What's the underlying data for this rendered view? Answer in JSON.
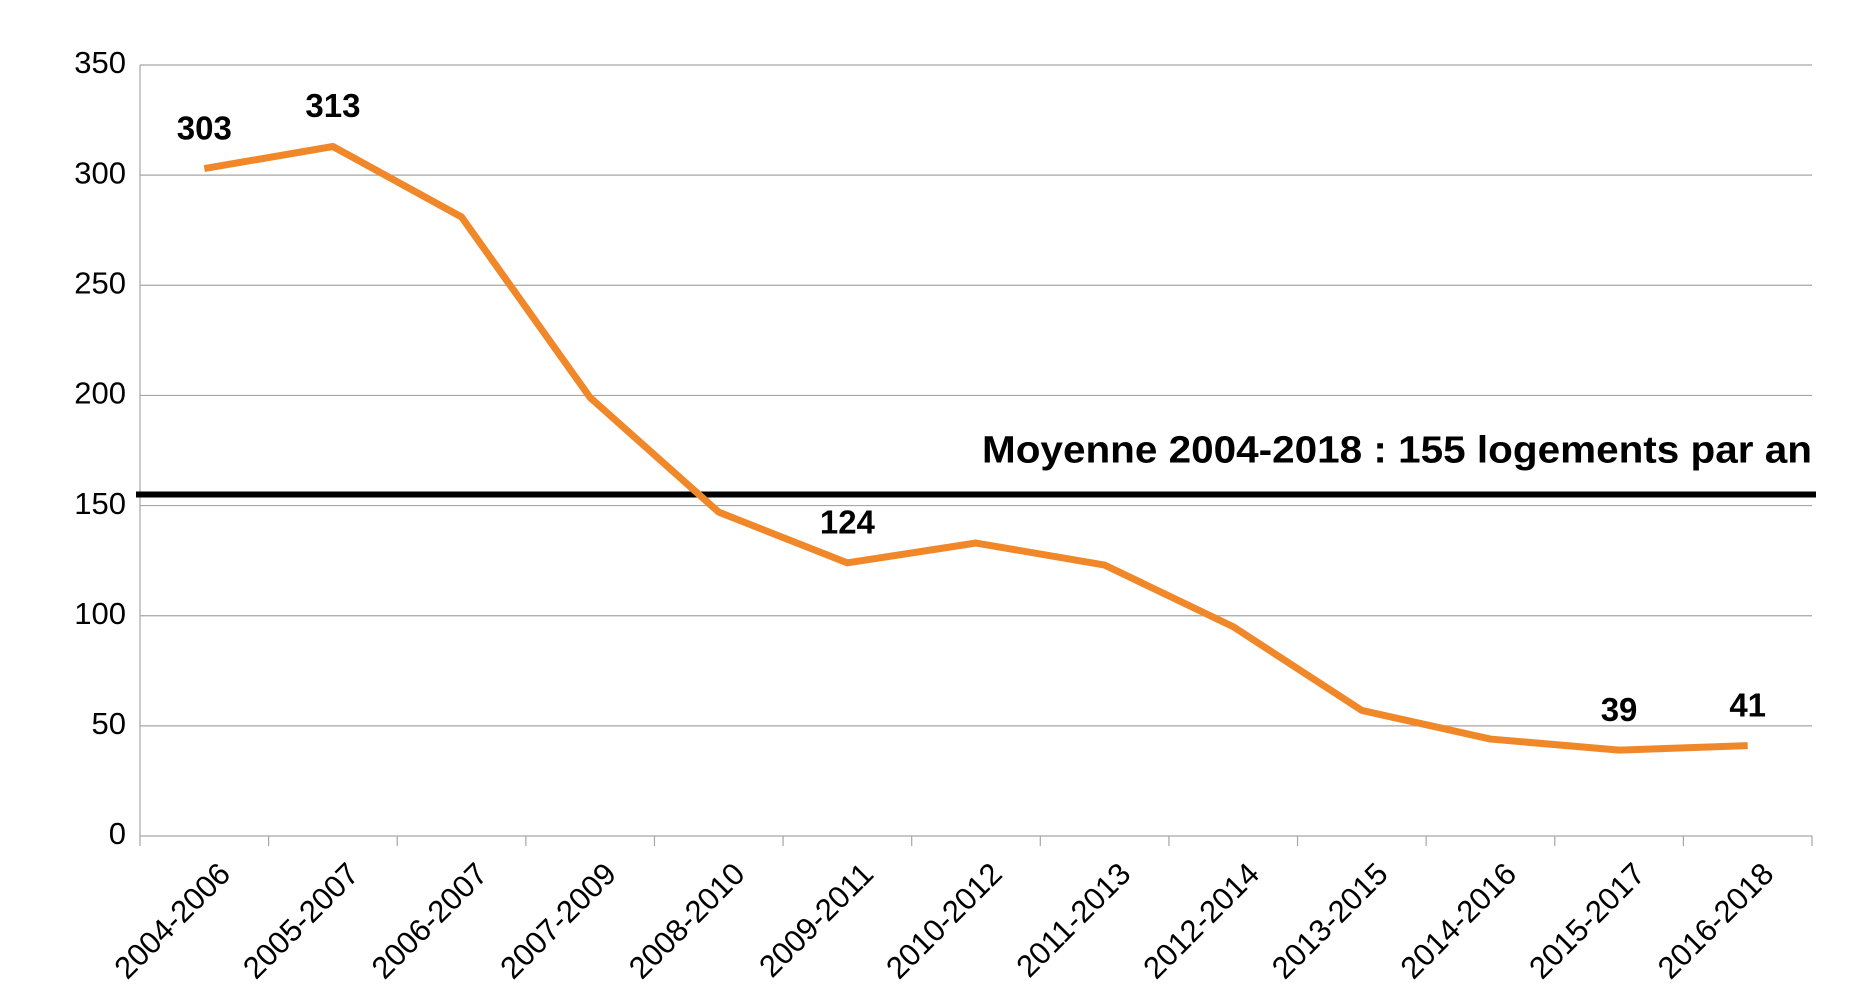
{
  "chart_data": {
    "type": "line",
    "categories": [
      "2004-2006",
      "2005-2007",
      "2006-2007",
      "2007-2009",
      "2008-2010",
      "2009-2011",
      "2010-2012",
      "2011-2013",
      "2012-2014",
      "2013-2015",
      "2014-2016",
      "2015-2017",
      "2016-2018"
    ],
    "series": [
      {
        "name": "logements",
        "color": "#f0882a",
        "values": [
          303,
          313,
          281,
          199,
          147,
          124,
          133,
          123,
          95,
          57,
          44,
          39,
          41
        ]
      }
    ],
    "reference_line": {
      "value": 155,
      "label": "Moyenne 2004-2018 : 155 logements par an",
      "color": "#000000"
    },
    "ylim": [
      0,
      350
    ],
    "yticks": [
      0,
      50,
      100,
      150,
      200,
      250,
      300,
      350
    ],
    "grid": true
  }
}
